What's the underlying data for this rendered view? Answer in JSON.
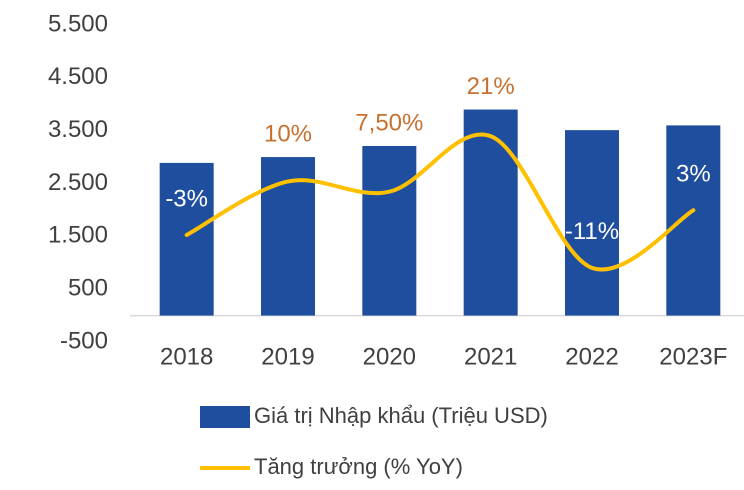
{
  "chart_data": {
    "type": "bar_line",
    "categories": [
      "2018",
      "2019",
      "2020",
      "2021",
      "2022",
      "2023F"
    ],
    "series": [
      {
        "name": "Giá trị Nhập khẩu (Triệu USD)",
        "type": "bar",
        "color": "#1f4e9f",
        "values": [
          2890,
          3000,
          3210,
          3900,
          3510,
          3600
        ]
      },
      {
        "name": "Tăng trưởng (% YoY)",
        "type": "line",
        "axis": "y2",
        "color": "#ffc000",
        "values": [
          -3,
          10,
          7.5,
          21,
          -11,
          3
        ],
        "value_labels": [
          "-3%",
          "10%",
          "7,50%",
          "21%",
          "-11%",
          "3%"
        ],
        "value_label_colors": [
          "#ffffff",
          "#c8702e",
          "#c8702e",
          "#c8702e",
          "#ffffff",
          "#ffffff"
        ]
      }
    ],
    "ylim": [
      -500,
      5500
    ],
    "yticks": [
      -500,
      500,
      {
        "value": 1500,
        "label": "1.500"
      },
      {
        "value": 2500,
        "label": "2.500"
      },
      {
        "value": 3500,
        "label": "3.500"
      },
      {
        "value": 4500,
        "label": "4.500"
      },
      {
        "value": 5500,
        "label": "5.500"
      }
    ],
    "y2lim": [
      -29,
      48
    ],
    "grid": false
  }
}
